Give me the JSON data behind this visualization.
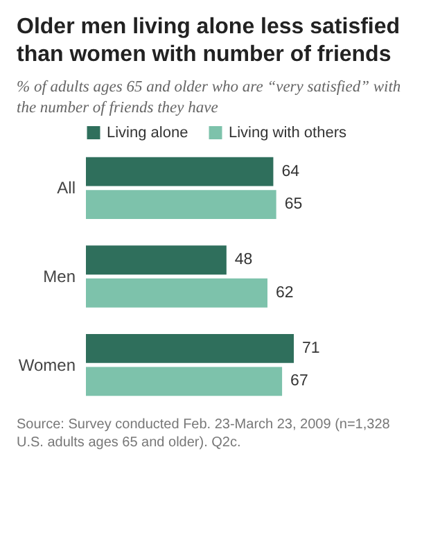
{
  "chart_data": {
    "type": "bar",
    "orientation": "horizontal",
    "title": "Older men living alone less satisfied than women with number of friends",
    "subtitle": "% of adults ages 65 and older who are “very satisfied” with the number of friends they have",
    "categories": [
      "All",
      "Men",
      "Women"
    ],
    "series": [
      {
        "name": "Living alone",
        "color": "#2f6f5c",
        "values": [
          64,
          48,
          71
        ]
      },
      {
        "name": "Living with others",
        "color": "#7dc2ab",
        "values": [
          65,
          62,
          67
        ]
      }
    ],
    "data_labels": true,
    "legend": "top",
    "grid": false,
    "annotations": [
      "Source: Survey conducted Feb. 23-March 23, 2009 (n=1,328 U.S. adults ages 65 and older). Q2c."
    ]
  }
}
